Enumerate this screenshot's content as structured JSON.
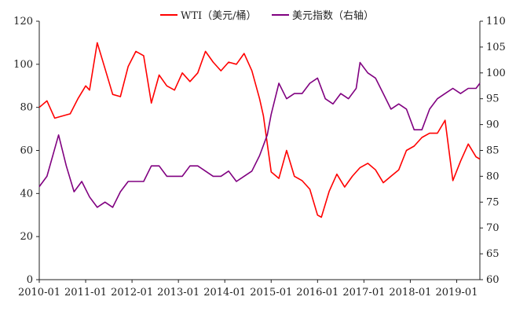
{
  "chart_data": {
    "type": "line",
    "x_range": [
      "2010-01",
      "2019-07"
    ],
    "x_tick_labels": [
      "2010-01",
      "2011-01",
      "2012-01",
      "2013-01",
      "2014-01",
      "2015-01",
      "2016-01",
      "2017-01",
      "2018-01",
      "2019-01"
    ],
    "y_left": {
      "ylim": [
        0,
        120
      ],
      "ticks": [
        "0",
        "20",
        "40",
        "60",
        "80",
        "100",
        "120"
      ]
    },
    "y_right": {
      "ylim": [
        60,
        110
      ],
      "ticks": [
        "60",
        "65",
        "70",
        "75",
        "80",
        "85",
        "90",
        "95",
        "100",
        "105",
        "110"
      ]
    },
    "grid": false,
    "legend_position": "top-center",
    "series": [
      {
        "name": "WTI（美元/桶）",
        "axis": "left",
        "color": "#ff0000",
        "x": [
          "2010-01",
          "2010-03",
          "2010-05",
          "2010-07",
          "2010-09",
          "2010-11",
          "2011-01",
          "2011-02",
          "2011-04",
          "2011-06",
          "2011-08",
          "2011-10",
          "2011-12",
          "2012-02",
          "2012-04",
          "2012-06",
          "2012-08",
          "2012-10",
          "2012-12",
          "2013-02",
          "2013-04",
          "2013-06",
          "2013-08",
          "2013-10",
          "2013-12",
          "2014-02",
          "2014-04",
          "2014-06",
          "2014-08",
          "2014-10",
          "2014-11",
          "2015-01",
          "2015-03",
          "2015-05",
          "2015-07",
          "2015-09",
          "2015-11",
          "2016-01",
          "2016-02",
          "2016-04",
          "2016-06",
          "2016-08",
          "2016-10",
          "2016-12",
          "2017-02",
          "2017-04",
          "2017-06",
          "2017-08",
          "2017-10",
          "2017-12",
          "2018-02",
          "2018-04",
          "2018-06",
          "2018-08",
          "2018-10",
          "2018-12",
          "2019-02",
          "2019-04",
          "2019-06",
          "2019-07"
        ],
        "values": [
          80,
          83,
          75,
          76,
          77,
          84,
          90,
          88,
          110,
          98,
          86,
          85,
          99,
          106,
          104,
          82,
          95,
          90,
          88,
          96,
          92,
          96,
          106,
          101,
          97,
          101,
          100,
          105,
          97,
          84,
          76,
          50,
          47,
          60,
          48,
          46,
          42,
          30,
          29,
          41,
          49,
          43,
          48,
          52,
          54,
          51,
          45,
          48,
          51,
          60,
          62,
          66,
          68,
          68,
          74,
          46,
          55,
          63,
          57,
          56
        ]
      },
      {
        "name": "美元指数（右轴）",
        "axis": "right",
        "color": "#800080",
        "x": [
          "2010-01",
          "2010-03",
          "2010-06",
          "2010-08",
          "2010-10",
          "2010-12",
          "2011-02",
          "2011-04",
          "2011-06",
          "2011-08",
          "2011-10",
          "2011-12",
          "2012-02",
          "2012-04",
          "2012-06",
          "2012-08",
          "2012-10",
          "2012-12",
          "2013-02",
          "2013-04",
          "2013-06",
          "2013-08",
          "2013-10",
          "2013-12",
          "2014-02",
          "2014-04",
          "2014-06",
          "2014-08",
          "2014-10",
          "2014-12",
          "2015-01",
          "2015-03",
          "2015-05",
          "2015-07",
          "2015-09",
          "2015-11",
          "2016-01",
          "2016-03",
          "2016-05",
          "2016-07",
          "2016-09",
          "2016-11",
          "2016-12",
          "2017-02",
          "2017-04",
          "2017-06",
          "2017-08",
          "2017-10",
          "2017-12",
          "2018-02",
          "2018-04",
          "2018-06",
          "2018-08",
          "2018-10",
          "2018-12",
          "2019-02",
          "2019-04",
          "2019-06",
          "2019-07"
        ],
        "values": [
          78,
          80,
          88,
          82,
          77,
          79,
          76,
          74,
          75,
          74,
          77,
          79,
          79,
          79,
          82,
          82,
          80,
          80,
          80,
          82,
          82,
          81,
          80,
          80,
          81,
          79,
          80,
          81,
          84,
          88,
          92,
          98,
          95,
          96,
          96,
          98,
          99,
          95,
          94,
          96,
          95,
          97,
          102,
          100,
          99,
          96,
          93,
          94,
          93,
          89,
          89,
          93,
          95,
          96,
          97,
          96,
          97,
          97,
          98
        ]
      }
    ]
  }
}
